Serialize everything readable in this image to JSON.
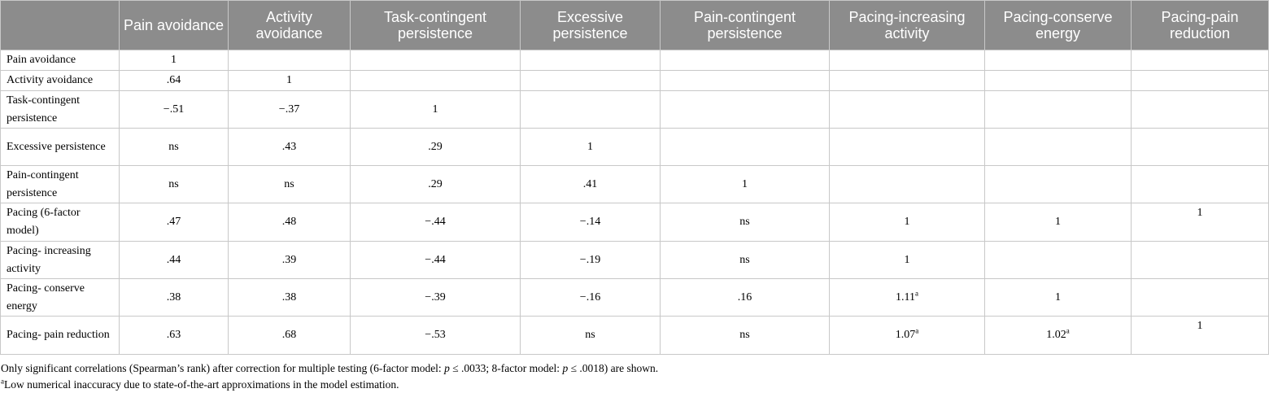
{
  "header": {
    "corner": "",
    "columns": [
      "Pain avoidance",
      "Activity avoidance",
      "Task-contingent persistence",
      "Excessive persistence",
      "Pain-contingent persistence",
      "Pacing-increasing activity",
      "Pacing-conserve energy",
      "Pacing-pain reduction"
    ]
  },
  "rows": [
    {
      "label": "Pain avoidance",
      "cells": [
        "1",
        "",
        "",
        "",
        "",
        "",
        "",
        ""
      ]
    },
    {
      "label": "Activity avoidance",
      "cells": [
        ".64",
        "1",
        "",
        "",
        "",
        "",
        "",
        ""
      ]
    },
    {
      "label": "Task-contingent persistence",
      "cells": [
        "−.51",
        "−.37",
        "1",
        "",
        "",
        "",
        "",
        ""
      ]
    },
    {
      "label": "Excessive persistence",
      "cells": [
        "ns",
        ".43",
        ".29",
        "1",
        "",
        "",
        "",
        ""
      ]
    },
    {
      "label": "Pain-contingent persistence",
      "cells": [
        "ns",
        "ns",
        ".29",
        ".41",
        "1",
        "",
        "",
        ""
      ]
    },
    {
      "label": "Pacing (6-factor model)",
      "cells": [
        ".47",
        ".48",
        "−.44",
        "−.14",
        "ns",
        "1",
        "1",
        "1"
      ]
    },
    {
      "label": "Pacing- increasing activity",
      "cells": [
        ".44",
        ".39",
        "−.44",
        "−.19",
        "ns",
        "1",
        "",
        ""
      ]
    },
    {
      "label": "Pacing- conserve energy",
      "cells": [
        ".38",
        ".38",
        "−.39",
        "−.16",
        ".16",
        "1.11",
        "1",
        ""
      ]
    },
    {
      "label": "Pacing- pain reduction",
      "cells": [
        ".63",
        ".68",
        "−.53",
        "ns",
        "ns",
        "1.07",
        "1.02",
        "1"
      ]
    }
  ],
  "footnote_marker": "a",
  "notes": {
    "main_pre": "Only significant correlations (Spearman’s rank) after correction for multiple testing (6-factor model: ",
    "p1": "p",
    "main_mid": " ≤ .0033; 8-factor model: ",
    "p2": "p",
    "main_post": " ≤ .0018) are shown.",
    "a_marker": "a",
    "a_text": "Low numerical inaccuracy due to state-of-the-art approximations in the model estimation."
  }
}
